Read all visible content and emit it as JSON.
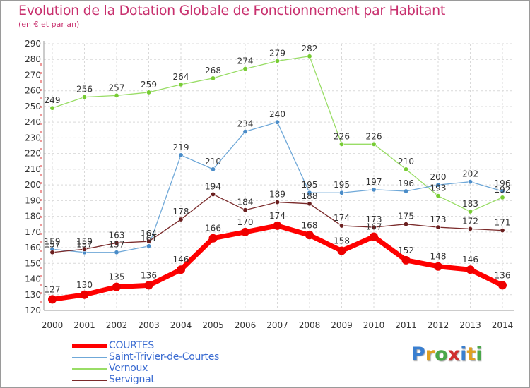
{
  "title": "Evolution de la Dotation Globale de Fonctionnement par Habitant",
  "subtitle": "(en € et par an)",
  "logo": {
    "text": "Proxiti",
    "letters": [
      "P",
      "r",
      "o",
      "x",
      "i",
      "t",
      "i"
    ],
    "colors": [
      "#3a7fd0",
      "#e0a020",
      "#4aa84a",
      "#d03030",
      "#3a7fd0",
      "#e0a020",
      "#4aa84a"
    ]
  },
  "chart_data": {
    "type": "line",
    "categories": [
      "2000",
      "2001",
      "2002",
      "2003",
      "2004",
      "2005",
      "2006",
      "2007",
      "2008",
      "2009",
      "2010",
      "2011",
      "2012",
      "2013",
      "2014"
    ],
    "ylim": [
      120,
      290
    ],
    "y_ticks": [
      "120",
      "130",
      "140",
      "150",
      "160",
      "170",
      "180",
      "190",
      "200",
      "210",
      "220",
      "230",
      "240",
      "250",
      "260",
      "270",
      "280",
      "290"
    ],
    "grid": true,
    "legend_position": "bottom-left",
    "series": [
      {
        "name": "Vernoux",
        "color": "#99dd66",
        "marker_color": "#77cc33",
        "values": [
          249,
          256,
          257,
          259,
          264,
          268,
          274,
          279,
          282,
          226,
          226,
          210,
          193,
          183,
          192
        ],
        "labels": [
          "249",
          "256",
          "257",
          "259",
          "264",
          "268",
          "274",
          "279",
          "282",
          "226",
          "226",
          "210",
          "193",
          "183",
          "192"
        ]
      },
      {
        "name": "Saint-Trivier-de-Courtes",
        "color": "#6fa8d8",
        "marker_color": "#4a8cc8",
        "values": [
          159,
          157,
          157,
          161,
          219,
          210,
          234,
          240,
          195,
          195,
          197,
          196,
          200,
          202,
          196
        ],
        "labels": [
          "159",
          "157",
          "157",
          "161",
          "219",
          "210",
          "234",
          "240",
          "195",
          "195",
          "197",
          "196",
          "200",
          "202",
          "196"
        ]
      },
      {
        "name": "Servignat",
        "color": "#7a2a2a",
        "marker_color": "#6a1f1f",
        "values": [
          157,
          159,
          163,
          164,
          178,
          194,
          184,
          189,
          188,
          174,
          173,
          175,
          173,
          172,
          171
        ],
        "labels": [
          "157",
          "159",
          "163",
          "164",
          "178",
          "194",
          "184",
          "189",
          "188",
          "174",
          "173",
          "175",
          "173",
          "172",
          "171"
        ]
      },
      {
        "name": "COURTES",
        "color": "#ff0000",
        "marker_color": "#ee0000",
        "values": [
          127,
          130,
          135,
          136,
          146,
          166,
          170,
          174,
          168,
          158,
          167,
          152,
          148,
          146,
          136
        ],
        "labels": [
          "127",
          "130",
          "135",
          "136",
          "146",
          "166",
          "170",
          "174",
          "168",
          "158",
          "167",
          "152",
          "148",
          "146",
          "136"
        ]
      }
    ],
    "legend": [
      {
        "name": "COURTES",
        "color": "#ff0000"
      },
      {
        "name": "Saint-Trivier-de-Courtes",
        "color": "#6fa8d8"
      },
      {
        "name": "Vernoux",
        "color": "#99dd66"
      },
      {
        "name": "Servignat",
        "color": "#7a2a2a"
      }
    ]
  }
}
